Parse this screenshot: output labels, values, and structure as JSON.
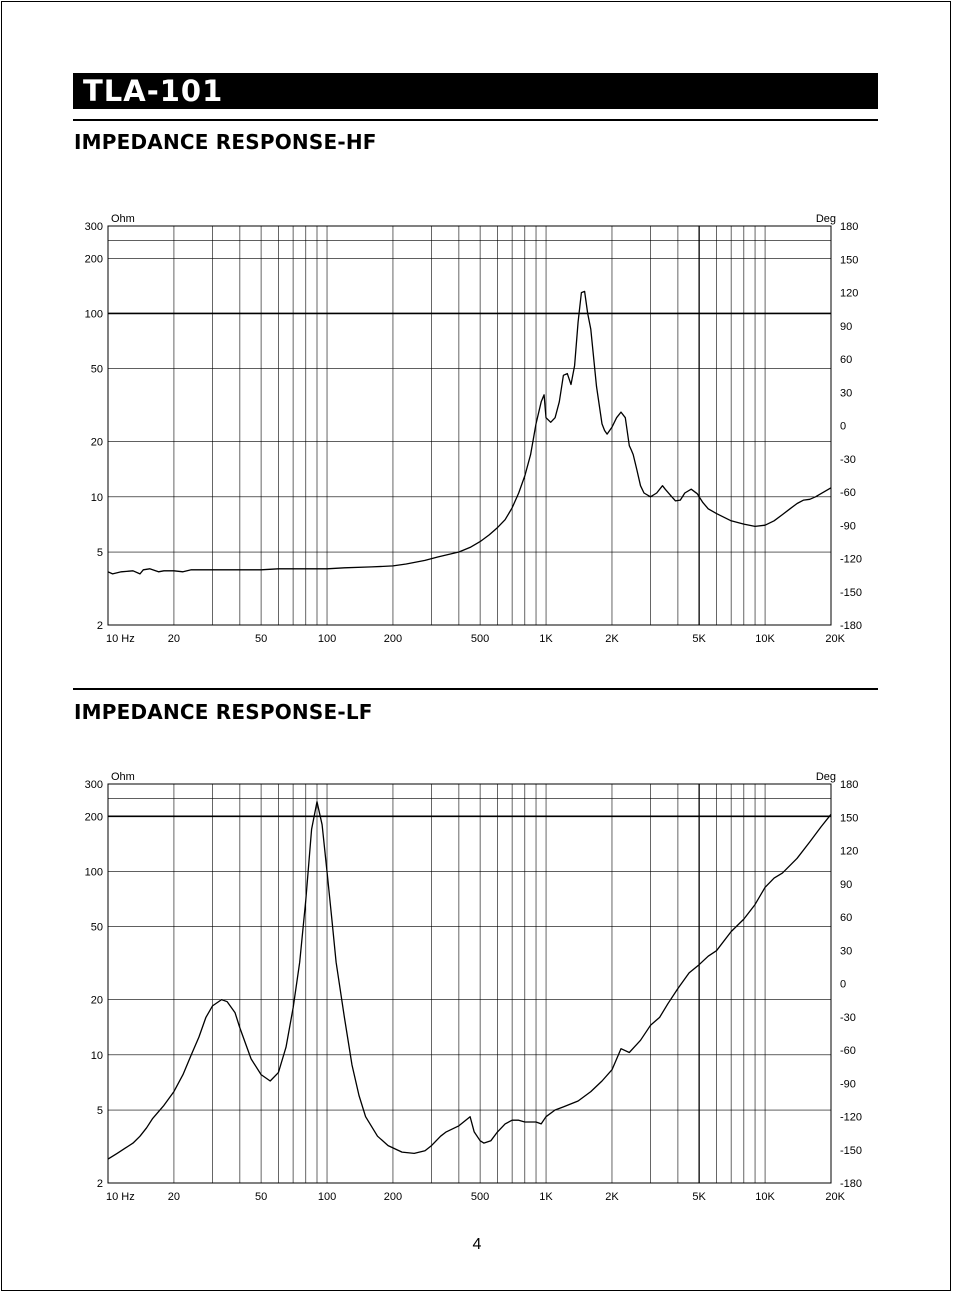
{
  "title": "TLA-101",
  "page_number": "4",
  "colors": {
    "ink": "#000000",
    "background": "#ffffff"
  },
  "chart_data": [
    {
      "type": "line",
      "title": "IMPEDANCE RESPONSE-HF",
      "xscale": "log",
      "yscale": "log",
      "xlim": [
        10,
        20000
      ],
      "ylim": [
        2,
        300
      ],
      "y2lim": [
        -180,
        180
      ],
      "ylabel": "Ohm",
      "y2label": "Deg",
      "grid": true,
      "x_ticks": [
        {
          "v": 10,
          "label": "10  Hz"
        },
        {
          "v": 20,
          "label": "20"
        },
        {
          "v": 50,
          "label": "50"
        },
        {
          "v": 100,
          "label": "100"
        },
        {
          "v": 200,
          "label": "200"
        },
        {
          "v": 500,
          "label": "500"
        },
        {
          "v": 1000,
          "label": "1K"
        },
        {
          "v": 2000,
          "label": "2K"
        },
        {
          "v": 5000,
          "label": "5K"
        },
        {
          "v": 10000,
          "label": "10K"
        },
        {
          "v": 20000,
          "label": "20K"
        }
      ],
      "y_ticks": [
        {
          "v": 2,
          "label": "2"
        },
        {
          "v": 5,
          "label": "5"
        },
        {
          "v": 10,
          "label": "10"
        },
        {
          "v": 20,
          "label": "20"
        },
        {
          "v": 50,
          "label": "50"
        },
        {
          "v": 100,
          "label": "100"
        },
        {
          "v": 200,
          "label": "200"
        },
        {
          "v": 300,
          "label": "300"
        }
      ],
      "y2_ticks": [
        "-180",
        "-150",
        "-120",
        "-90",
        "-60",
        "-30",
        "0",
        "30",
        "60",
        "90",
        "120",
        "150",
        "180"
      ],
      "reference_line_y": 100,
      "series": [
        {
          "x": [
            10,
            10.5,
            11.5,
            13,
            14,
            14.5,
            15.5,
            17,
            18,
            20,
            22,
            24,
            30,
            50,
            60,
            100,
            120,
            160,
            200,
            230,
            280,
            320,
            400,
            450,
            500,
            550,
            600,
            650,
            700,
            750,
            800,
            850,
            900,
            950,
            980,
            1000,
            1050,
            1100,
            1150,
            1200,
            1250,
            1300,
            1350,
            1400,
            1450,
            1500,
            1550,
            1600,
            1700,
            1800,
            1850,
            1900,
            2000,
            2100,
            2200,
            2300,
            2400,
            2450,
            2500,
            2600,
            2700,
            2800,
            3000,
            3200,
            3400,
            3500,
            3700,
            3900,
            4100,
            4300,
            4600,
            4900,
            5200,
            5500,
            6000,
            7000,
            8000,
            9000,
            10000,
            11000,
            12000,
            13000,
            14000,
            15000,
            16000,
            17000,
            20000
          ],
          "y": [
            3.9,
            3.8,
            3.9,
            3.95,
            3.8,
            4.0,
            4.05,
            3.9,
            3.95,
            3.95,
            3.9,
            4.0,
            4.0,
            4.0,
            4.05,
            4.05,
            4.1,
            4.15,
            4.2,
            4.3,
            4.5,
            4.7,
            5.0,
            5.3,
            5.7,
            6.2,
            6.8,
            7.5,
            8.7,
            10.5,
            13,
            17,
            25,
            33,
            36,
            27,
            25.5,
            27,
            33,
            46,
            47,
            41,
            52,
            90,
            130,
            132,
            100,
            82,
            40,
            25,
            23,
            22,
            24,
            27,
            29,
            27,
            19,
            18,
            17,
            14,
            11.5,
            10.5,
            10.0,
            10.5,
            11.5,
            11.0,
            10.2,
            9.5,
            9.6,
            10.5,
            11.0,
            10.4,
            9.3,
            8.6,
            8.1,
            7.4,
            7.1,
            6.9,
            7.0,
            7.4,
            8.0,
            8.6,
            9.2,
            9.6,
            9.7,
            10.0,
            11.2
          ]
        }
      ]
    },
    {
      "type": "line",
      "title": "IMPEDANCE RESPONSE-LF",
      "xscale": "log",
      "yscale": "log",
      "xlim": [
        10,
        20000
      ],
      "ylim": [
        2,
        300
      ],
      "y2lim": [
        -180,
        180
      ],
      "ylabel": "Ohm",
      "y2label": "Deg",
      "grid": true,
      "x_ticks": [
        {
          "v": 10,
          "label": "10  Hz"
        },
        {
          "v": 20,
          "label": "20"
        },
        {
          "v": 50,
          "label": "50"
        },
        {
          "v": 100,
          "label": "100"
        },
        {
          "v": 200,
          "label": "200"
        },
        {
          "v": 500,
          "label": "500"
        },
        {
          "v": 1000,
          "label": "1K"
        },
        {
          "v": 2000,
          "label": "2K"
        },
        {
          "v": 5000,
          "label": "5K"
        },
        {
          "v": 10000,
          "label": "10K"
        },
        {
          "v": 20000,
          "label": "20K"
        }
      ],
      "y_ticks": [
        {
          "v": 2,
          "label": "2"
        },
        {
          "v": 5,
          "label": "5"
        },
        {
          "v": 10,
          "label": "10"
        },
        {
          "v": 20,
          "label": "20"
        },
        {
          "v": 50,
          "label": "50"
        },
        {
          "v": 100,
          "label": "100"
        },
        {
          "v": 200,
          "label": "200"
        },
        {
          "v": 300,
          "label": "300"
        }
      ],
      "y2_ticks": [
        "-180",
        "-150",
        "-120",
        "-90",
        "-60",
        "-30",
        "0",
        "30",
        "60",
        "90",
        "120",
        "150",
        "180"
      ],
      "reference_line_y": 200,
      "series": [
        {
          "x": [
            10,
            11,
            12,
            13,
            14,
            15,
            16,
            18,
            20,
            22,
            24,
            26,
            28,
            30,
            33,
            35,
            38,
            40,
            45,
            50,
            55,
            60,
            65,
            70,
            75,
            80,
            85,
            90,
            95,
            100,
            105,
            110,
            120,
            130,
            140,
            150,
            170,
            190,
            220,
            250,
            280,
            300,
            330,
            350,
            400,
            450,
            470,
            500,
            520,
            560,
            600,
            650,
            700,
            750,
            800,
            900,
            950,
            1000,
            1100,
            1200,
            1400,
            1600,
            1800,
            2000,
            2200,
            2400,
            2700,
            3000,
            3300,
            3600,
            4000,
            4500,
            5000,
            5500,
            6000,
            7000,
            8000,
            9000,
            10000,
            11000,
            12000,
            14000,
            16000,
            18000,
            20000
          ],
          "y": [
            2.7,
            2.9,
            3.1,
            3.3,
            3.6,
            4.0,
            4.5,
            5.3,
            6.3,
            7.8,
            10,
            12.5,
            16,
            18.5,
            20,
            19.5,
            17,
            14,
            9.5,
            7.8,
            7.2,
            8.0,
            11,
            18,
            32,
            70,
            170,
            240,
            180,
            100,
            56,
            32,
            16,
            8.8,
            6.0,
            4.6,
            3.6,
            3.2,
            2.95,
            2.9,
            3.0,
            3.2,
            3.6,
            3.8,
            4.1,
            4.6,
            3.8,
            3.4,
            3.3,
            3.4,
            3.8,
            4.2,
            4.4,
            4.4,
            4.3,
            4.3,
            4.2,
            4.6,
            5.0,
            5.2,
            5.6,
            6.3,
            7.2,
            8.3,
            10.8,
            10.3,
            12.0,
            14.5,
            16.0,
            19.0,
            23.0,
            28.0,
            31.0,
            34.5,
            37.0,
            47.0,
            55.0,
            66.0,
            82.0,
            92.0,
            98.0,
            118.0,
            145.0,
            175.0,
            205.0
          ]
        }
      ]
    }
  ]
}
